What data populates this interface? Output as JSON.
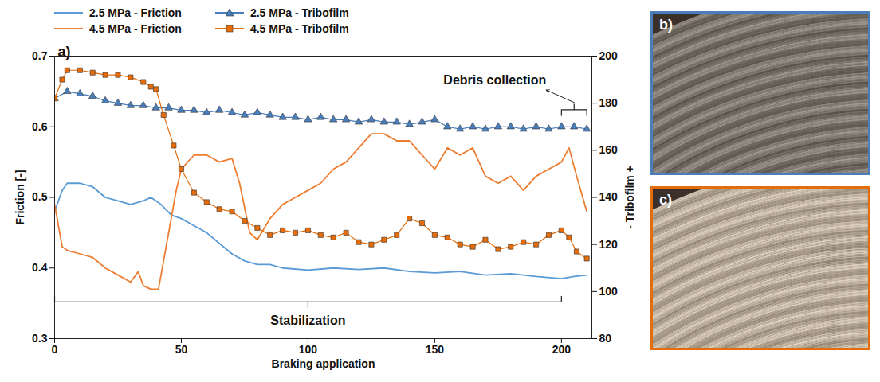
{
  "chart_data": {
    "type": "line",
    "panel_label": "a)",
    "panel_labels": [
      "b)",
      "c)"
    ],
    "x_label": "Braking application",
    "y_label": "Friction [-]",
    "y2_label": "- Tribofilm +",
    "xlim": [
      0,
      212
    ],
    "xticks": [
      0,
      50,
      100,
      150,
      200
    ],
    "ylim": [
      0.3,
      0.7
    ],
    "yticks": [
      0.3,
      0.4,
      0.5,
      0.6,
      0.7
    ],
    "y2lim": [
      80,
      200
    ],
    "y2ticks": [
      80,
      100,
      120,
      140,
      160,
      180,
      200
    ],
    "grid": false,
    "legend": "top",
    "phases": [
      {
        "label": "Stabilization",
        "start": 0,
        "end": 200
      },
      {
        "label": "Debris collection",
        "start": 200,
        "end": 210
      }
    ],
    "series": [
      {
        "name": "2.5 MPa - Friction",
        "color": "#5b9bd5",
        "line_style": "solid",
        "x": [
          0,
          3,
          5,
          10,
          15,
          20,
          25,
          30,
          35,
          38,
          42,
          46,
          50,
          55,
          60,
          65,
          70,
          75,
          80,
          85,
          90,
          100,
          110,
          120,
          130,
          140,
          150,
          160,
          170,
          180,
          190,
          200,
          205,
          210
        ],
        "values": [
          0.48,
          0.51,
          0.52,
          0.52,
          0.515,
          0.5,
          0.495,
          0.49,
          0.495,
          0.5,
          0.49,
          0.475,
          0.47,
          0.46,
          0.45,
          0.435,
          0.42,
          0.41,
          0.405,
          0.405,
          0.4,
          0.397,
          0.4,
          0.398,
          0.4,
          0.395,
          0.393,
          0.395,
          0.39,
          0.392,
          0.388,
          0.385,
          0.388,
          0.39
        ]
      },
      {
        "name": "4.5 MPa - Friction",
        "color": "#ed7d31",
        "line_style": "solid",
        "x": [
          0,
          3,
          5,
          10,
          15,
          20,
          25,
          30,
          33,
          35,
          38,
          41,
          45,
          48,
          50,
          55,
          60,
          65,
          70,
          73,
          77,
          80,
          85,
          90,
          95,
          100,
          105,
          110,
          115,
          120,
          125,
          130,
          135,
          140,
          145,
          150,
          155,
          160,
          165,
          170,
          175,
          180,
          185,
          190,
          195,
          200,
          203,
          206,
          210
        ],
        "values": [
          0.49,
          0.43,
          0.425,
          0.42,
          0.415,
          0.4,
          0.39,
          0.38,
          0.395,
          0.375,
          0.37,
          0.37,
          0.45,
          0.51,
          0.54,
          0.56,
          0.56,
          0.55,
          0.555,
          0.52,
          0.45,
          0.44,
          0.47,
          0.49,
          0.5,
          0.51,
          0.52,
          0.54,
          0.55,
          0.57,
          0.59,
          0.59,
          0.58,
          0.58,
          0.56,
          0.54,
          0.57,
          0.56,
          0.57,
          0.53,
          0.52,
          0.53,
          0.51,
          0.53,
          0.54,
          0.55,
          0.57,
          0.53,
          0.48
        ]
      },
      {
        "name": "2.5 MPa - Tribofilm",
        "color": "#4a7ebb",
        "marker": "triangle",
        "line_style": "solid",
        "axis": "y2",
        "x": [
          0,
          5,
          10,
          15,
          20,
          25,
          30,
          35,
          40,
          45,
          50,
          55,
          60,
          65,
          70,
          75,
          80,
          85,
          90,
          95,
          100,
          105,
          110,
          115,
          120,
          125,
          130,
          135,
          140,
          145,
          150,
          155,
          160,
          165,
          170,
          175,
          180,
          185,
          190,
          195,
          200,
          205,
          210
        ],
        "values": [
          182,
          185,
          184,
          183,
          181,
          180,
          179,
          179,
          178,
          178,
          177,
          177,
          176,
          177,
          176,
          175,
          176,
          175,
          174,
          174,
          173,
          174,
          173,
          173,
          172,
          173,
          172,
          172,
          171,
          172,
          173,
          170,
          169,
          170,
          169,
          170,
          170,
          169,
          170,
          169,
          170,
          170,
          169
        ]
      },
      {
        "name": "4.5 MPa - Tribofilm",
        "color": "#e46c0a",
        "marker": "square",
        "line_style": "solid",
        "axis": "y2",
        "x": [
          0,
          3,
          5,
          10,
          15,
          20,
          25,
          30,
          35,
          38,
          40,
          43,
          47,
          50,
          55,
          60,
          65,
          70,
          75,
          80,
          85,
          90,
          95,
          100,
          105,
          110,
          115,
          120,
          125,
          130,
          135,
          140,
          145,
          150,
          155,
          160,
          165,
          170,
          175,
          180,
          185,
          190,
          195,
          200,
          203,
          206,
          210
        ],
        "values": [
          182,
          190,
          194,
          194,
          193,
          192,
          192,
          191,
          189,
          187,
          186,
          175,
          162,
          152,
          142,
          138,
          135,
          134,
          130,
          127,
          124,
          126,
          125,
          126,
          124,
          123,
          125,
          121,
          120,
          122,
          124,
          131,
          129,
          124,
          123,
          120,
          119,
          122,
          118,
          119,
          121,
          120,
          124,
          126,
          123,
          117,
          114
        ]
      }
    ]
  }
}
